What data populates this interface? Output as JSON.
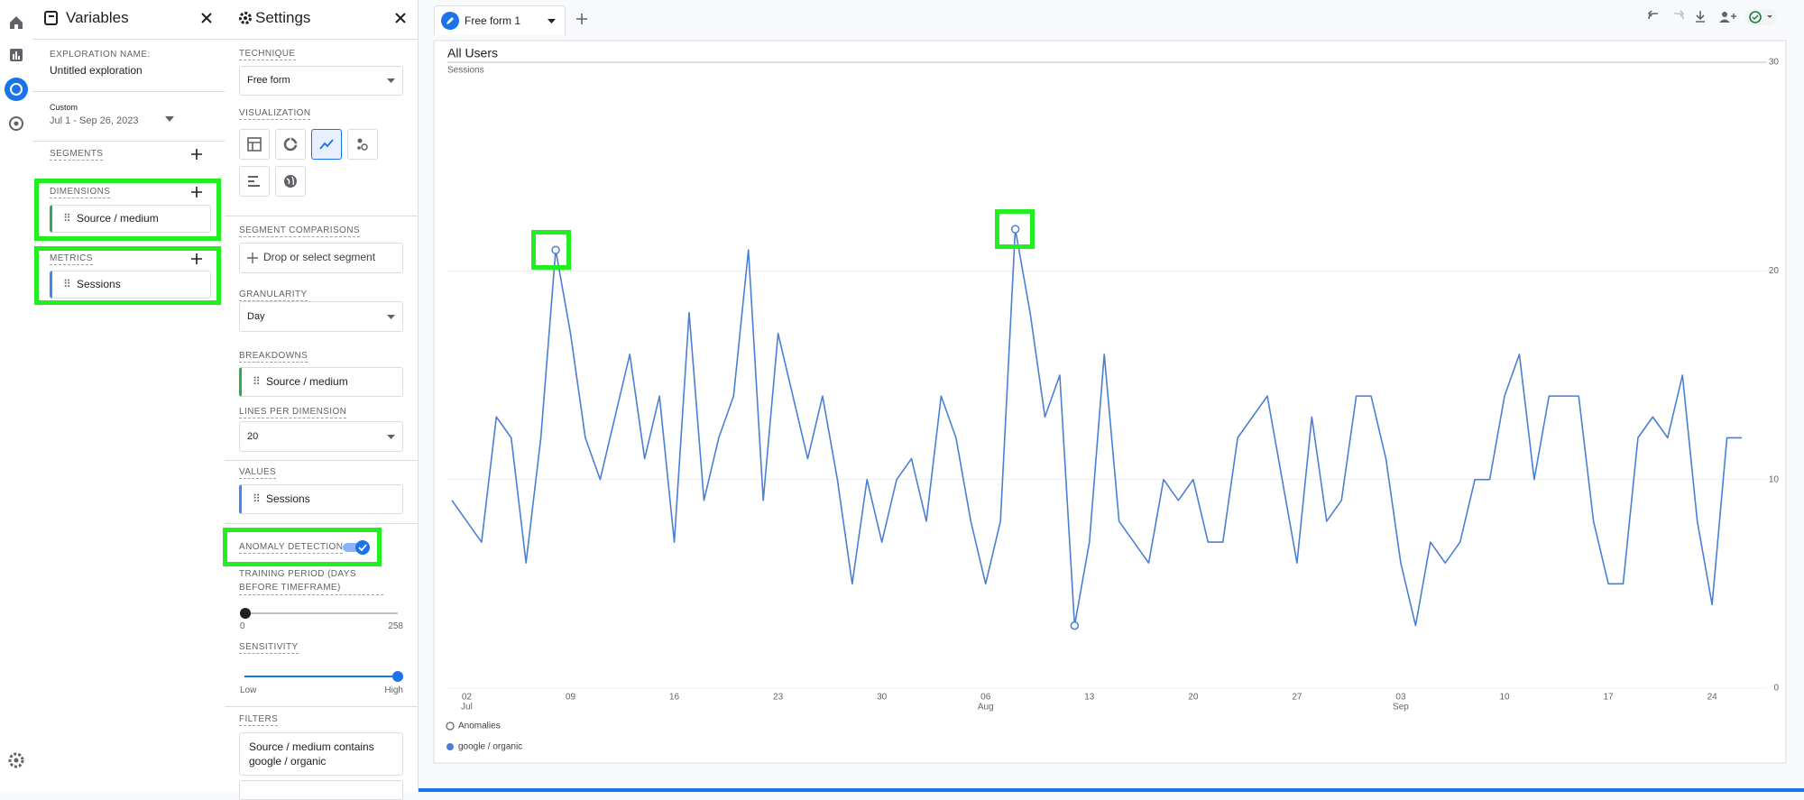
{
  "variables": {
    "title": "Variables",
    "exploration_name_label": "EXPLORATION NAME:",
    "exploration_name": "Untitled exploration",
    "date_range_label": "Custom",
    "date_range": "Jul 1 - Sep 26, 2023",
    "segments_label": "SEGMENTS",
    "dimensions_label": "DIMENSIONS",
    "dimensions": [
      "Source / medium"
    ],
    "metrics_label": "METRICS",
    "metrics": [
      "Sessions"
    ]
  },
  "settings": {
    "title": "Settings",
    "technique_label": "TECHNIQUE",
    "technique": "Free form",
    "visualization_label": "VISUALIZATION",
    "segment_comparisons_label": "SEGMENT COMPARISONS",
    "segment_placeholder": "Drop or select segment",
    "granularity_label": "GRANULARITY",
    "granularity": "Day",
    "breakdowns_label": "BREAKDOWNS",
    "breakdowns": [
      "Source / medium"
    ],
    "lines_per_dimension_label": "LINES PER DIMENSION",
    "lines_per_dimension": "20",
    "values_label": "VALUES",
    "values": [
      "Sessions"
    ],
    "anomaly_detection_label": "ANOMALY DETECTION",
    "training_period_label": "TRAINING PERIOD (DAYS BEFORE TIMEFRAME)",
    "training_min": "0",
    "training_max": "258",
    "sensitivity_label": "SENSITIVITY",
    "sensitivity_low": "Low",
    "sensitivity_high": "High",
    "filters_label": "FILTERS",
    "filter": "Source / medium contains google / organic"
  },
  "tab": {
    "name": "Free form 1"
  },
  "chart_data": {
    "type": "line",
    "title": "All Users",
    "y_label": "Sessions",
    "categories": [
      null,
      "02",
      null,
      null,
      null,
      null,
      null,
      null,
      "09",
      null,
      null,
      null,
      null,
      null,
      null,
      "16",
      null,
      null,
      null,
      null,
      null,
      null,
      "23",
      null,
      null,
      null,
      null,
      null,
      null,
      "30",
      null,
      null,
      null,
      null,
      null,
      null,
      "06",
      null,
      null,
      null,
      null,
      null,
      null,
      "13",
      null,
      null,
      null,
      null,
      null,
      null,
      "20",
      null,
      null,
      null,
      null,
      null,
      null,
      "27",
      null,
      null,
      null,
      null,
      null,
      null,
      "03",
      null,
      null,
      null,
      null,
      null,
      null,
      "10",
      null,
      null,
      null,
      null,
      null,
      null,
      "17",
      null,
      null,
      null,
      null,
      null,
      null,
      "24",
      null,
      null
    ],
    "months": [
      {
        "category": 1,
        "label": "Jul"
      },
      {
        "category": 36,
        "label": "Aug"
      },
      {
        "category": 64,
        "label": "Sep"
      }
    ],
    "series": [
      {
        "name": "google / organic",
        "color": "#4a7fd4",
        "values": [
          9,
          8,
          7,
          13,
          12,
          6,
          12,
          21,
          17,
          12,
          10,
          13,
          16,
          11,
          14,
          7,
          18,
          9,
          12,
          14,
          21,
          9,
          17,
          14,
          11,
          14,
          10,
          5,
          10,
          7,
          10,
          11,
          8,
          14,
          12,
          8,
          5,
          8,
          22,
          18,
          13,
          15,
          3,
          7,
          16,
          8,
          7,
          6,
          10,
          9,
          10,
          7,
          7,
          12,
          13,
          14,
          10,
          6,
          13,
          8,
          9,
          14,
          14,
          11,
          6,
          3,
          7,
          6,
          7,
          10,
          10,
          14,
          16,
          10,
          14,
          14,
          14,
          8,
          5,
          5,
          12,
          13,
          12,
          15,
          8,
          4,
          12,
          12
        ]
      }
    ],
    "anomalies": {
      "name": "Anomalies",
      "values": [
        null,
        null,
        null,
        null,
        null,
        null,
        null,
        21,
        null,
        null,
        null,
        null,
        null,
        null,
        null,
        null,
        null,
        null,
        null,
        null,
        null,
        null,
        null,
        null,
        null,
        null,
        null,
        null,
        null,
        null,
        null,
        null,
        null,
        null,
        null,
        null,
        null,
        null,
        22,
        null,
        null,
        null,
        3,
        null,
        null,
        null,
        null,
        null,
        null,
        null,
        null,
        null,
        null,
        null,
        null,
        null,
        null,
        null,
        null,
        null,
        null,
        null,
        null,
        null,
        null,
        null,
        null,
        null,
        null,
        null,
        null,
        null,
        null,
        null,
        null,
        null,
        null,
        null,
        null,
        null,
        null,
        null,
        null,
        null,
        null,
        null,
        null,
        null
      ]
    },
    "ylim": [
      0,
      30
    ],
    "yticks": [
      0,
      10,
      20,
      30
    ],
    "y_axis_side": "right",
    "grid": true
  }
}
